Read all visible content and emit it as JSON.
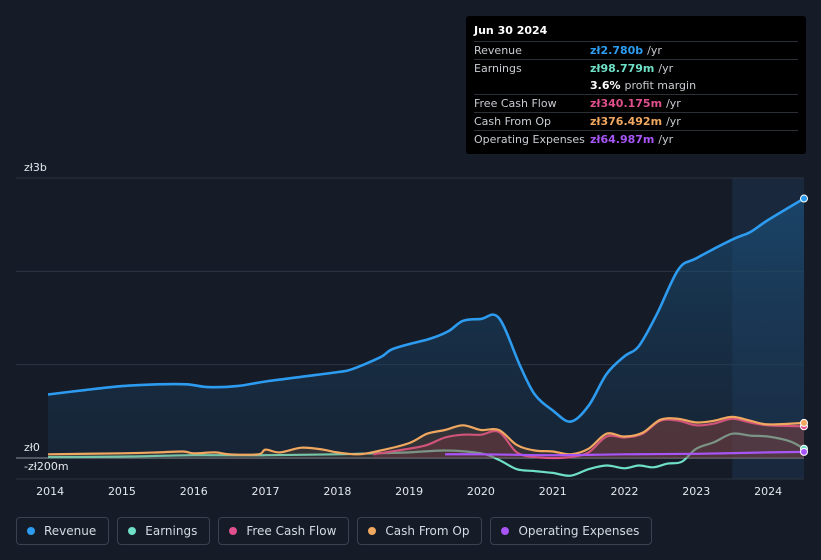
{
  "tooltip": {
    "date": "Jun 30 2024",
    "rows": [
      {
        "key": "Revenue",
        "value": "zł2.780b",
        "unit": "/yr",
        "color": "#2d9cf0"
      },
      {
        "key": "Earnings",
        "value": "zł98.779m",
        "unit": "/yr",
        "color": "#6fe0c8"
      },
      {
        "key": "",
        "value": "3.6%",
        "unit": "profit margin",
        "color": "#ffffff"
      },
      {
        "key": "Free Cash Flow",
        "value": "zł340.175m",
        "unit": "/yr",
        "color": "#e0508c"
      },
      {
        "key": "Cash From Op",
        "value": "zł376.492m",
        "unit": "/yr",
        "color": "#f0a860"
      },
      {
        "key": "Operating Expenses",
        "value": "zł64.987m",
        "unit": "/yr",
        "color": "#a855f7"
      }
    ]
  },
  "legend": [
    {
      "label": "Revenue",
      "color": "#2d9cf0"
    },
    {
      "label": "Earnings",
      "color": "#6fe0c8"
    },
    {
      "label": "Free Cash Flow",
      "color": "#e0508c"
    },
    {
      "label": "Cash From Op",
      "color": "#f0a860"
    },
    {
      "label": "Operating Expenses",
      "color": "#a855f7"
    }
  ],
  "chart_data": {
    "type": "area",
    "currency_unit": "PLN millions",
    "y_labels": {
      "top": "zł3b",
      "zero": "zł0",
      "bottom": "-zł200m"
    },
    "ylim": [
      -200,
      3000
    ],
    "xlim": [
      2013.97,
      2024.5
    ],
    "x_ticks": [
      "2014",
      "2015",
      "2016",
      "2017",
      "2018",
      "2019",
      "2020",
      "2021",
      "2022",
      "2023",
      "2024"
    ],
    "highlight_from": 2023.5,
    "series": [
      {
        "name": "Revenue",
        "color": "#2d9cf0",
        "fill": true,
        "points": [
          [
            2013.97,
            680
          ],
          [
            2014.5,
            730
          ],
          [
            2015,
            770
          ],
          [
            2015.5,
            790
          ],
          [
            2015.9,
            790
          ],
          [
            2016.2,
            760
          ],
          [
            2016.6,
            770
          ],
          [
            2017,
            820
          ],
          [
            2017.5,
            870
          ],
          [
            2018,
            920
          ],
          [
            2018.2,
            950
          ],
          [
            2018.6,
            1080
          ],
          [
            2018.75,
            1160
          ],
          [
            2019,
            1220
          ],
          [
            2019.3,
            1280
          ],
          [
            2019.55,
            1360
          ],
          [
            2019.75,
            1470
          ],
          [
            2020.0,
            1490
          ],
          [
            2020.25,
            1500
          ],
          [
            2020.55,
            980
          ],
          [
            2020.75,
            680
          ],
          [
            2021.0,
            510
          ],
          [
            2021.25,
            390
          ],
          [
            2021.5,
            560
          ],
          [
            2021.75,
            900
          ],
          [
            2022.0,
            1090
          ],
          [
            2022.2,
            1200
          ],
          [
            2022.45,
            1540
          ],
          [
            2022.75,
            2020
          ],
          [
            2023.0,
            2140
          ],
          [
            2023.5,
            2340
          ],
          [
            2023.75,
            2420
          ],
          [
            2024.0,
            2550
          ],
          [
            2024.5,
            2780
          ]
        ]
      },
      {
        "name": "Earnings",
        "color": "#6fe0c8",
        "fill": false,
        "points": [
          [
            2013.97,
            10
          ],
          [
            2015,
            15
          ],
          [
            2016,
            30
          ],
          [
            2017,
            30
          ],
          [
            2018,
            40
          ],
          [
            2018.5,
            50
          ],
          [
            2019,
            60
          ],
          [
            2019.5,
            80
          ],
          [
            2020,
            50
          ],
          [
            2020.25,
            -20
          ],
          [
            2020.5,
            -120
          ],
          [
            2020.75,
            -140
          ],
          [
            2021,
            -160
          ],
          [
            2021.25,
            -190
          ],
          [
            2021.5,
            -120
          ],
          [
            2021.75,
            -80
          ],
          [
            2022,
            -110
          ],
          [
            2022.2,
            -80
          ],
          [
            2022.4,
            -100
          ],
          [
            2022.6,
            -60
          ],
          [
            2022.8,
            -40
          ],
          [
            2023,
            100
          ],
          [
            2023.25,
            170
          ],
          [
            2023.5,
            260
          ],
          [
            2023.75,
            240
          ],
          [
            2024,
            230
          ],
          [
            2024.3,
            180
          ],
          [
            2024.5,
            99
          ]
        ]
      },
      {
        "name": "Free Cash Flow",
        "color": "#e0508c",
        "fill": true,
        "points": [
          [
            2018.5,
            40
          ],
          [
            2019,
            100
          ],
          [
            2019.25,
            140
          ],
          [
            2019.5,
            220
          ],
          [
            2019.75,
            250
          ],
          [
            2020,
            250
          ],
          [
            2020.25,
            280
          ],
          [
            2020.5,
            60
          ],
          [
            2020.75,
            10
          ],
          [
            2021,
            0
          ],
          [
            2021.25,
            10
          ],
          [
            2021.5,
            60
          ],
          [
            2021.75,
            230
          ],
          [
            2022,
            220
          ],
          [
            2022.25,
            260
          ],
          [
            2022.5,
            400
          ],
          [
            2022.75,
            400
          ],
          [
            2023,
            350
          ],
          [
            2023.25,
            370
          ],
          [
            2023.5,
            420
          ],
          [
            2023.75,
            380
          ],
          [
            2024,
            350
          ],
          [
            2024.5,
            340
          ]
        ]
      },
      {
        "name": "Cash From Op",
        "color": "#f0a860",
        "fill": true,
        "points": [
          [
            2013.97,
            40
          ],
          [
            2015,
            50
          ],
          [
            2015.5,
            60
          ],
          [
            2015.85,
            70
          ],
          [
            2016,
            50
          ],
          [
            2016.3,
            60
          ],
          [
            2016.5,
            40
          ],
          [
            2016.9,
            40
          ],
          [
            2017,
            90
          ],
          [
            2017.2,
            60
          ],
          [
            2017.5,
            110
          ],
          [
            2017.8,
            90
          ],
          [
            2018,
            60
          ],
          [
            2018.3,
            40
          ],
          [
            2018.6,
            80
          ],
          [
            2019,
            160
          ],
          [
            2019.25,
            260
          ],
          [
            2019.5,
            300
          ],
          [
            2019.75,
            350
          ],
          [
            2020,
            300
          ],
          [
            2020.25,
            300
          ],
          [
            2020.5,
            140
          ],
          [
            2020.75,
            80
          ],
          [
            2021,
            70
          ],
          [
            2021.25,
            40
          ],
          [
            2021.5,
            100
          ],
          [
            2021.75,
            260
          ],
          [
            2022,
            230
          ],
          [
            2022.25,
            270
          ],
          [
            2022.5,
            410
          ],
          [
            2022.75,
            420
          ],
          [
            2023,
            380
          ],
          [
            2023.25,
            400
          ],
          [
            2023.5,
            440
          ],
          [
            2023.75,
            400
          ],
          [
            2024,
            360
          ],
          [
            2024.5,
            376
          ]
        ]
      },
      {
        "name": "Operating Expenses",
        "color": "#a855f7",
        "fill": false,
        "points": [
          [
            2019.5,
            40
          ],
          [
            2020,
            40
          ],
          [
            2021,
            30
          ],
          [
            2022,
            40
          ],
          [
            2023,
            45
          ],
          [
            2024,
            60
          ],
          [
            2024.5,
            65
          ]
        ]
      }
    ]
  }
}
